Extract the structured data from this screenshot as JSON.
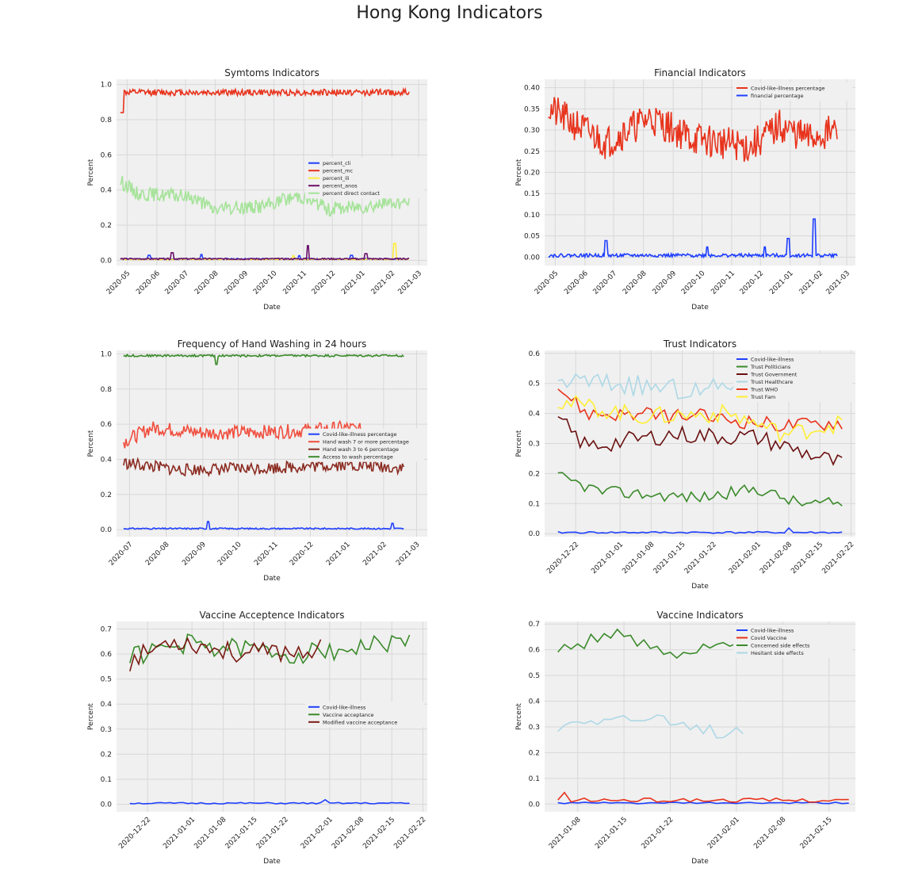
{
  "suptitle": "Hong Kong Indicators",
  "charts": [
    {
      "id": "symptoms",
      "title": "Symtoms Indicators",
      "xlabel": "Date",
      "ylabel": "Percent",
      "xaxis": {
        "type": "month",
        "start": "2020-04-20",
        "end": "2021-03-10",
        "ticks": [
          "2020-05",
          "2020-06",
          "2020-07",
          "2020-08",
          "2020-09",
          "2020-10",
          "2020-11",
          "2020-12",
          "2021-01",
          "2021-02",
          "2021-03"
        ]
      },
      "yaxis": {
        "min": -0.03,
        "max": 1.03,
        "ticks": [
          0.0,
          0.2,
          0.4,
          0.6,
          0.8,
          1.0
        ],
        "decimals": 1
      },
      "legend": {
        "position": "center-right"
      },
      "series": [
        {
          "name": "percent_cli",
          "color": "#1f3fff",
          "start": "2020-04-24",
          "end": "2021-02-19",
          "base": 0.008,
          "noise": 0.003,
          "spikes": [
            [
              0.1,
              0.02
            ],
            [
              0.28,
              0.025
            ],
            [
              0.62,
              0.018
            ],
            [
              0.8,
              0.02
            ]
          ],
          "seed": 11
        },
        {
          "name": "percent_mc",
          "color": "#e8331c",
          "start": "2020-04-24",
          "end": "2021-02-19",
          "base": 0.955,
          "noise": 0.018,
          "start_val": 0.84,
          "seed": 12
        },
        {
          "name": "percent_ili",
          "color": "#ffec3d",
          "start": "2020-04-24",
          "end": "2021-02-19",
          "base": 0.006,
          "noise": 0.003,
          "spikes": [
            [
              0.6,
              0.02
            ],
            [
              0.95,
              0.09
            ]
          ],
          "seed": 13
        },
        {
          "name": "percent_anos",
          "color": "#6a0f6a",
          "start": "2020-04-24",
          "end": "2021-02-19",
          "base": 0.008,
          "noise": 0.004,
          "spikes": [
            [
              0.18,
              0.035
            ],
            [
              0.65,
              0.075
            ],
            [
              0.85,
              0.03
            ]
          ],
          "seed": 14
        },
        {
          "name": "percent direct contact",
          "color": "#a6e39a",
          "start": "2020-04-24",
          "end": "2021-02-19",
          "base": 0.33,
          "noise": 0.04,
          "profile": [
            [
              0,
              0.45
            ],
            [
              0.06,
              0.38
            ],
            [
              0.25,
              0.36
            ],
            [
              0.32,
              0.29
            ],
            [
              0.5,
              0.31
            ],
            [
              0.62,
              0.37
            ],
            [
              0.72,
              0.29
            ],
            [
              0.85,
              0.31
            ],
            [
              0.95,
              0.33
            ],
            [
              1,
              0.33
            ]
          ],
          "seed": 15
        }
      ]
    },
    {
      "id": "financial",
      "title": "Financial Indicators",
      "xlabel": "Date",
      "ylabel": "Percent",
      "xaxis": {
        "type": "month",
        "start": "2020-04-20",
        "end": "2021-03-10",
        "ticks": [
          "2020-05",
          "2020-06",
          "2020-07",
          "2020-08",
          "2020-09",
          "2020-10",
          "2020-11",
          "2020-12",
          "2021-01",
          "2021-02",
          "2021-03"
        ]
      },
      "yaxis": {
        "min": -0.02,
        "max": 0.42,
        "ticks": [
          0.0,
          0.05,
          0.1,
          0.15,
          0.2,
          0.25,
          0.3,
          0.35,
          0.4
        ],
        "decimals": 2
      },
      "legend": {
        "position": "top-right"
      },
      "series": [
        {
          "name": "Covid-like-illness percentage",
          "color": "#e8331c",
          "start": "2020-04-24",
          "end": "2021-02-19",
          "base": 0.3,
          "noise": 0.04,
          "profile": [
            [
              0,
              0.35
            ],
            [
              0.1,
              0.31
            ],
            [
              0.2,
              0.27
            ],
            [
              0.35,
              0.33
            ],
            [
              0.5,
              0.28
            ],
            [
              0.7,
              0.26
            ],
            [
              0.8,
              0.31
            ],
            [
              0.9,
              0.28
            ],
            [
              1,
              0.3
            ]
          ],
          "seed": 21
        },
        {
          "name": "financial percentage",
          "color": "#1f3fff",
          "start": "2020-04-24",
          "end": "2021-02-19",
          "base": 0.004,
          "noise": 0.004,
          "spikes": [
            [
              0.2,
              0.035
            ],
            [
              0.55,
              0.02
            ],
            [
              0.75,
              0.02
            ],
            [
              0.83,
              0.04
            ],
            [
              0.92,
              0.086
            ]
          ],
          "seed": 22
        }
      ]
    },
    {
      "id": "handwash",
      "title": "Frequency of Hand Washing in 24 hours",
      "xlabel": "Date",
      "ylabel": "Percent",
      "xaxis": {
        "type": "month",
        "start": "2020-06-20",
        "end": "2021-03-10",
        "ticks": [
          "2020-07",
          "2020-08",
          "2020-09",
          "2020-10",
          "2020-11",
          "2020-12",
          "2021-01",
          "2021-02",
          "2021-03"
        ]
      },
      "yaxis": {
        "min": -0.04,
        "max": 1.02,
        "ticks": [
          0.0,
          0.2,
          0.4,
          0.6,
          0.8,
          1.0
        ],
        "decimals": 1
      },
      "legend": {
        "position": "center-right"
      },
      "series": [
        {
          "name": "Covid-like-illness percentage",
          "color": "#1f3fff",
          "start": "2020-06-26",
          "end": "2021-02-18",
          "base": 0.006,
          "noise": 0.004,
          "spikes": [
            [
              0.3,
              0.04
            ],
            [
              0.96,
              0.03
            ]
          ],
          "seed": 31
        },
        {
          "name": "Hand wash 7 or more percentage",
          "color": "#f04e3e",
          "start": "2020-06-26",
          "end": "2021-02-18",
          "base": 0.55,
          "noise": 0.04,
          "profile": [
            [
              0,
              0.5
            ],
            [
              0.1,
              0.58
            ],
            [
              0.3,
              0.55
            ],
            [
              0.6,
              0.56
            ],
            [
              0.8,
              0.58
            ],
            [
              1,
              0.52
            ]
          ],
          "seed": 32
        },
        {
          "name": "Hand wash 3 to 6 percentage",
          "color": "#8b2a20",
          "start": "2020-06-26",
          "end": "2021-02-18",
          "base": 0.36,
          "noise": 0.035,
          "profile": [
            [
              0,
              0.38
            ],
            [
              0.2,
              0.34
            ],
            [
              0.5,
              0.35
            ],
            [
              0.8,
              0.37
            ],
            [
              1,
              0.35
            ]
          ],
          "seed": 33
        },
        {
          "name": "Access to wash percentage",
          "color": "#3a8a2a",
          "start": "2020-06-26",
          "end": "2021-02-18",
          "base": 0.99,
          "noise": 0.006,
          "spikes": [
            [
              0.33,
              -0.05
            ]
          ],
          "seed": 34
        }
      ]
    },
    {
      "id": "trust",
      "title": "Trust Indicators",
      "xlabel": "Date",
      "ylabel": "Percent",
      "xaxis": {
        "type": "week",
        "start": "2020-12-15",
        "end": "2021-02-23",
        "ticks": [
          "2020-12-22",
          "2021-01-01",
          "2021-01-08",
          "2021-01-15",
          "2021-01-22",
          "2021-02-01",
          "2021-02-08",
          "2021-02-15",
          "2021-02-22"
        ]
      },
      "yaxis": {
        "min": -0.01,
        "max": 0.61,
        "ticks": [
          0.0,
          0.1,
          0.2,
          0.3,
          0.4,
          0.5,
          0.6
        ],
        "decimals": 1
      },
      "legend": {
        "position": "top-right"
      },
      "series": [
        {
          "name": "Covid-like-illness",
          "color": "#1f3fff",
          "start": "2020-12-18",
          "end": "2021-02-20",
          "base": 0.004,
          "noise": 0.003,
          "spikes": [
            [
              0.81,
              0.015
            ]
          ],
          "seed": 41
        },
        {
          "name": "Trust Politicians",
          "color": "#3a8a2a",
          "start": "2020-12-18",
          "end": "2021-02-20",
          "base": 0.14,
          "noise": 0.02,
          "profile": [
            [
              0,
              0.19
            ],
            [
              0.15,
              0.14
            ],
            [
              0.5,
              0.12
            ],
            [
              0.7,
              0.15
            ],
            [
              0.85,
              0.1
            ],
            [
              1,
              0.1
            ]
          ],
          "seed": 42
        },
        {
          "name": "Trust Government",
          "color": "#6b1010",
          "start": "2020-12-18",
          "end": "2021-02-20",
          "base": 0.32,
          "noise": 0.03,
          "profile": [
            [
              0,
              0.38
            ],
            [
              0.1,
              0.29
            ],
            [
              0.4,
              0.33
            ],
            [
              0.7,
              0.32
            ],
            [
              0.9,
              0.26
            ],
            [
              1,
              0.23
            ]
          ],
          "seed": 43
        },
        {
          "name": "Trust Healthcare",
          "color": "#add8e6",
          "start": "2020-12-18",
          "end": "2021-02-20",
          "end_frac": 0.78,
          "base": 0.48,
          "noise": 0.035,
          "profile": [
            [
              0,
              0.51
            ],
            [
              0.2,
              0.5
            ],
            [
              0.5,
              0.47
            ],
            [
              0.78,
              0.55
            ]
          ],
          "seed": 44
        },
        {
          "name": "Trust WHO",
          "color": "#e8331c",
          "start": "2020-12-18",
          "end": "2021-02-20",
          "base": 0.39,
          "noise": 0.025,
          "profile": [
            [
              0,
              0.49
            ],
            [
              0.1,
              0.4
            ],
            [
              0.5,
              0.39
            ],
            [
              0.8,
              0.36
            ],
            [
              1,
              0.37
            ]
          ],
          "seed": 45
        },
        {
          "name": "Trust Fam",
          "color": "#ffee33",
          "start": "2020-12-18",
          "end": "2021-02-20",
          "base": 0.38,
          "noise": 0.03,
          "profile": [
            [
              0,
              0.44
            ],
            [
              0.3,
              0.39
            ],
            [
              0.6,
              0.4
            ],
            [
              0.8,
              0.33
            ],
            [
              1,
              0.37
            ]
          ],
          "seed": 46
        }
      ]
    },
    {
      "id": "vaccine_accept",
      "title": "Vaccine Acceptence Indicators",
      "xlabel": "Date",
      "ylabel": "Percent",
      "xaxis": {
        "type": "week",
        "start": "2020-12-15",
        "end": "2021-02-23",
        "ticks": [
          "2020-12-22",
          "2021-01-01",
          "2021-01-08",
          "2021-01-15",
          "2021-01-22",
          "2021-02-01",
          "2021-02-08",
          "2021-02-15",
          "2021-02-22"
        ]
      },
      "yaxis": {
        "min": -0.03,
        "max": 0.73,
        "ticks": [
          0.0,
          0.1,
          0.2,
          0.3,
          0.4,
          0.5,
          0.6,
          0.7
        ],
        "decimals": 1
      },
      "legend": {
        "position": "center-right"
      },
      "series": [
        {
          "name": "Covid-like-illness",
          "color": "#1f3fff",
          "start": "2020-12-18",
          "end": "2021-02-19",
          "base": 0.004,
          "noise": 0.003,
          "spikes": [
            [
              0.7,
              0.014
            ]
          ],
          "seed": 51
        },
        {
          "name": "Vaccine acceptance",
          "color": "#3a8a2a",
          "start": "2020-12-18",
          "end": "2021-02-19",
          "base": 0.62,
          "noise": 0.04,
          "profile": [
            [
              0,
              0.59
            ],
            [
              0.2,
              0.64
            ],
            [
              0.6,
              0.6
            ],
            [
              1,
              0.65
            ]
          ],
          "seed": 52
        },
        {
          "name": "Modified vaccine acceptance",
          "color": "#7a1a14",
          "start": "2020-12-18",
          "end": "2021-02-19",
          "end_frac": 0.69,
          "base": 0.6,
          "noise": 0.04,
          "profile": [
            [
              0,
              0.57
            ],
            [
              0.15,
              0.66
            ],
            [
              0.4,
              0.6
            ],
            [
              0.69,
              0.62
            ]
          ],
          "seed": 53
        }
      ]
    },
    {
      "id": "vaccine",
      "title": "Vaccine Indicators",
      "xlabel": "Date",
      "ylabel": "Percent",
      "xaxis": {
        "type": "week",
        "start": "2021-01-03",
        "end": "2021-02-19",
        "ticks": [
          "2021-01-08",
          "2021-01-15",
          "2021-01-22",
          "2021-02-01",
          "2021-02-08",
          "2021-02-15"
        ]
      },
      "yaxis": {
        "min": -0.03,
        "max": 0.71,
        "ticks": [
          0.0,
          0.1,
          0.2,
          0.3,
          0.4,
          0.5,
          0.6,
          0.7
        ],
        "decimals": 1
      },
      "legend": {
        "position": "top-right"
      },
      "series": [
        {
          "name": "Covid-like-illness",
          "color": "#1f3fff",
          "start": "2021-01-05",
          "end": "2021-02-18",
          "base": 0.004,
          "noise": 0.003,
          "seed": 61
        },
        {
          "name": "Covid Vaccine",
          "color": "#e8331c",
          "start": "2021-01-05",
          "end": "2021-02-18",
          "base": 0.015,
          "noise": 0.008,
          "spikes": [
            [
              0.47,
              0.045
            ],
            [
              0.02,
              0.03
            ]
          ],
          "seed": 62
        },
        {
          "name": "Concerned side effects",
          "color": "#3a8a2a",
          "start": "2021-01-05",
          "end": "2021-02-18",
          "end_frac": 0.65,
          "base": 0.61,
          "noise": 0.035,
          "profile": [
            [
              0,
              0.6
            ],
            [
              0.15,
              0.66
            ],
            [
              0.4,
              0.6
            ],
            [
              0.65,
              0.6
            ]
          ],
          "seed": 63
        },
        {
          "name": "Hesitant side effects",
          "color": "#add8e6",
          "start": "2021-01-05",
          "end": "2021-02-18",
          "end_frac": 0.65,
          "base": 0.31,
          "noise": 0.03,
          "profile": [
            [
              0,
              0.3
            ],
            [
              0.1,
              0.34
            ],
            [
              0.3,
              0.33
            ],
            [
              0.5,
              0.28
            ],
            [
              0.65,
              0.29
            ]
          ],
          "seed": 64
        }
      ]
    }
  ]
}
